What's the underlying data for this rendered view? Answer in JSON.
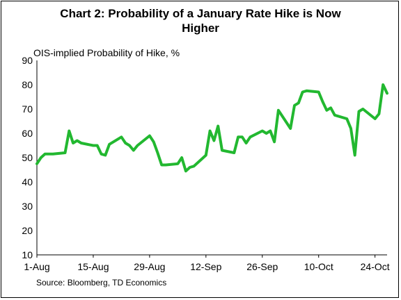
{
  "chart_data": {
    "type": "line",
    "title": "Chart 2: Probability of a January Rate Hike is Now Higher",
    "title_lines": [
      "Chart 2: Probability of a January Rate Hike is Now",
      "Higher"
    ],
    "ylabel": "OIS-implied Probability of Hike, %",
    "xlabel": "",
    "source": "Source: Bloomberg, TD Economics",
    "ylim": [
      10,
      90
    ],
    "yticks": [
      10,
      20,
      30,
      40,
      50,
      60,
      70,
      80,
      90
    ],
    "x_start": "1-Aug",
    "x_end": "27-Oct",
    "x_tick_labels": [
      "1-Aug",
      "15-Aug",
      "29-Aug",
      "12-Sep",
      "26-Sep",
      "10-Oct",
      "24-Oct"
    ],
    "x_tick_dates": [
      "2016-08-01",
      "2016-08-15",
      "2016-08-29",
      "2016-09-12",
      "2016-09-26",
      "2016-10-10",
      "2016-10-24"
    ],
    "grid": false,
    "line_color": "#22b830",
    "series": [
      {
        "x": [
          "2016-08-01",
          "2016-08-02",
          "2016-08-03",
          "2016-08-04",
          "2016-08-05",
          "2016-08-08",
          "2016-08-09",
          "2016-08-10",
          "2016-08-11",
          "2016-08-12",
          "2016-08-15",
          "2016-08-16",
          "2016-08-17",
          "2016-08-18",
          "2016-08-19",
          "2016-08-22",
          "2016-08-23",
          "2016-08-24",
          "2016-08-25",
          "2016-08-26",
          "2016-08-29",
          "2016-08-30",
          "2016-08-31",
          "2016-09-01",
          "2016-09-02",
          "2016-09-05",
          "2016-09-06",
          "2016-09-07",
          "2016-09-08",
          "2016-09-09",
          "2016-09-12",
          "2016-09-13",
          "2016-09-14",
          "2016-09-15",
          "2016-09-16",
          "2016-09-19",
          "2016-09-20",
          "2016-09-21",
          "2016-09-22",
          "2016-09-23",
          "2016-09-26",
          "2016-09-27",
          "2016-09-28",
          "2016-09-29",
          "2016-09-30",
          "2016-10-03",
          "2016-10-04",
          "2016-10-05",
          "2016-10-06",
          "2016-10-07",
          "2016-10-10",
          "2016-10-11",
          "2016-10-12",
          "2016-10-13",
          "2016-10-14",
          "2016-10-17",
          "2016-10-18",
          "2016-10-19",
          "2016-10-20",
          "2016-10-21",
          "2016-10-24",
          "2016-10-25",
          "2016-10-26",
          "2016-10-27"
        ],
        "values": [
          47.5,
          50,
          51.5,
          51.5,
          51.5,
          52,
          61,
          56,
          57,
          56,
          55,
          55,
          51.5,
          51,
          55.5,
          58.5,
          56,
          55,
          53,
          55,
          59,
          56.5,
          52,
          47,
          47,
          47.5,
          50,
          44.5,
          46,
          46.5,
          51,
          61,
          57,
          63,
          53,
          52,
          58.5,
          58.5,
          56,
          58.5,
          61,
          60,
          61,
          56.5,
          69.5,
          62,
          71.5,
          72.5,
          77,
          77.5,
          77,
          73,
          69.5,
          70.5,
          67.5,
          66,
          62,
          51,
          69,
          70,
          66,
          68,
          80,
          76.5
        ]
      }
    ]
  }
}
